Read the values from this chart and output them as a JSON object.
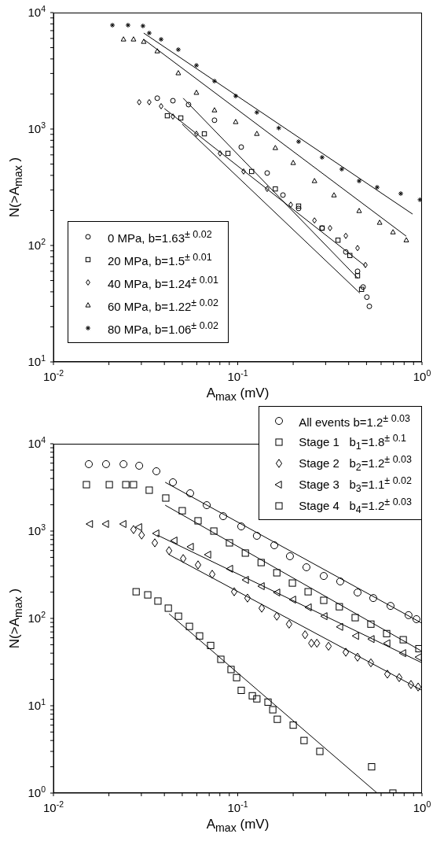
{
  "chart_data": [
    {
      "type": "scatter",
      "xlabel": "A$_{max}$ (mV)",
      "ylabel": "N(>A$_{max}$ )",
      "log": "xy",
      "legend": "bottom left",
      "xlim": [
        0.01,
        1
      ],
      "ylim": [
        10,
        10000
      ],
      "xticks": [
        {
          "value": 0.01,
          "label": "10$^{-2}$"
        },
        {
          "value": 0.02,
          "label": null
        },
        {
          "value": 0.03,
          "label": null
        },
        {
          "value": 0.04,
          "label": null
        },
        {
          "value": 0.05,
          "label": null
        },
        {
          "value": 0.06,
          "label": null
        },
        {
          "value": 0.07,
          "label": null
        },
        {
          "value": 0.08,
          "label": null
        },
        {
          "value": 0.09,
          "label": null
        },
        {
          "value": 0.1,
          "label": "10$^{-1}$"
        },
        {
          "value": 0.2,
          "label": null
        },
        {
          "value": 0.3,
          "label": null
        },
        {
          "value": 0.4,
          "label": null
        },
        {
          "value": 0.5,
          "label": null
        },
        {
          "value": 0.6,
          "label": null
        },
        {
          "value": 0.7,
          "label": null
        },
        {
          "value": 0.8,
          "label": null
        },
        {
          "value": 0.9,
          "label": null
        },
        {
          "value": 1,
          "label": "10$^{0}$"
        }
      ],
      "yticks": [
        {
          "value": 10,
          "label": "10$^{1}$"
        },
        {
          "value": 20,
          "label": null
        },
        {
          "value": 30,
          "label": null
        },
        {
          "value": 40,
          "label": null
        },
        {
          "value": 50,
          "label": null
        },
        {
          "value": 60,
          "label": null
        },
        {
          "value": 70,
          "label": null
        },
        {
          "value": 80,
          "label": null
        },
        {
          "value": 90,
          "label": null
        },
        {
          "value": 100,
          "label": "10$^{2}$"
        },
        {
          "value": 200,
          "label": null
        },
        {
          "value": 300,
          "label": null
        },
        {
          "value": 400,
          "label": null
        },
        {
          "value": 500,
          "label": null
        },
        {
          "value": 600,
          "label": null
        },
        {
          "value": 700,
          "label": null
        },
        {
          "value": 800,
          "label": null
        },
        {
          "value": 900,
          "label": null
        },
        {
          "value": 1000,
          "label": "10$^{3}$"
        },
        {
          "value": 2000,
          "label": null
        },
        {
          "value": 3000,
          "label": null
        },
        {
          "value": 4000,
          "label": null
        },
        {
          "value": 5000,
          "label": null
        },
        {
          "value": 6000,
          "label": null
        },
        {
          "value": 7000,
          "label": null
        },
        {
          "value": 8000,
          "label": null
        },
        {
          "value": 9000,
          "label": null
        },
        {
          "value": 10000,
          "label": "10$^{4}$"
        }
      ],
      "series": [
        {
          "name": "0 MPa, b=1.63$^{± 0.02}$",
          "color": "#000000",
          "marker": "circle",
          "x": [
            0.0366,
            0.0445,
            0.0541,
            0.0748,
            0.1045,
            0.1445,
            0.176,
            0.214,
            0.287,
            0.386,
            0.447,
            0.479,
            0.502,
            0.518
          ],
          "values": [
            1840,
            1750,
            1620,
            1190,
            700,
            419,
            271,
            208,
            141,
            88,
            60,
            44,
            36,
            30
          ]
        },
        {
          "name": "20 MPa, b=1.5$^{± 0.01}$",
          "color": "#000000",
          "marker": "square",
          "x": [
            0.0415,
            0.0491,
            0.0659,
            0.0885,
            0.119,
            0.16,
            0.214,
            0.287,
            0.35,
            0.406,
            0.447,
            0.47
          ],
          "values": [
            1300,
            1245,
            910,
            618,
            432,
            306,
            218,
            141,
            111,
            82,
            55,
            42
          ]
        },
        {
          "name": "40 MPa, b=1.24$^{± 0.01}$",
          "color": "#000000",
          "marker": "diamond",
          "x": [
            0.0292,
            0.0331,
            0.0384,
            0.0445,
            0.0597,
            0.0802,
            0.1076,
            0.1445,
            0.194,
            0.261,
            0.317,
            0.386,
            0.447,
            0.493
          ],
          "values": [
            1700,
            1700,
            1570,
            1280,
            910,
            618,
            432,
            306,
            224,
            164,
            141,
            121,
            95,
            68
          ]
        },
        {
          "name": "60 MPa, b=1.22$^{± 0.02}$",
          "color": "#000000",
          "marker": "triangle",
          "x": [
            0.024,
            0.0272,
            0.0309,
            0.0366,
            0.0476,
            0.0597,
            0.0748,
            0.0975,
            0.127,
            0.16,
            0.2,
            0.261,
            0.333,
            0.456,
            0.589,
            0.696,
            0.822
          ],
          "values": [
            5890,
            5890,
            5620,
            4660,
            3020,
            2050,
            1450,
            1150,
            910,
            688,
            512,
            358,
            270,
            198,
            157,
            130,
            111
          ]
        },
        {
          "name": "80 MPa, b=1.06$^{± 0.02}$",
          "color": "#000000",
          "marker": "cross",
          "x": [
            0.0209,
            0.0254,
            0.0306,
            0.0331,
            0.0384,
            0.0476,
            0.0597,
            0.0748,
            0.0975,
            0.127,
            0.167,
            0.214,
            0.287,
            0.367,
            0.456,
            0.571,
            0.767,
            0.975
          ],
          "values": [
            7800,
            7800,
            7680,
            6670,
            5890,
            4810,
            3520,
            2580,
            1920,
            1390,
            1020,
            780,
            571,
            452,
            358,
            316,
            279,
            247
          ]
        },
        {
          "type": "line",
          "color": "#000000",
          "x": [
            0.0506,
            0.45
          ],
          "values": [
            1840,
            52
          ]
        },
        {
          "type": "line",
          "color": "#000000",
          "x": [
            0.05,
            0.46
          ],
          "values": [
            1100,
            39
          ]
        },
        {
          "type": "line",
          "color": "#000000",
          "x": [
            0.04,
            0.49
          ],
          "values": [
            1500,
            67
          ]
        },
        {
          "type": "line",
          "color": "#000000",
          "x": [
            0.0309,
            0.822
          ],
          "values": [
            5890,
            120
          ]
        },
        {
          "type": "line",
          "color": "#000000",
          "x": [
            0.0309,
            0.889
          ],
          "values": [
            6670,
            186
          ]
        }
      ]
    },
    {
      "type": "scatter",
      "xlabel": "A$_{max}$ (mV)",
      "ylabel": "N(>A$_{max}$ )",
      "log": "xy",
      "legend": "top right",
      "xlim": [
        0.01,
        1
      ],
      "ylim": [
        1,
        10000
      ],
      "xticks": [
        {
          "value": 0.01,
          "label": "10$^{-2}$"
        },
        {
          "value": 0.02,
          "label": null
        },
        {
          "value": 0.03,
          "label": null
        },
        {
          "value": 0.04,
          "label": null
        },
        {
          "value": 0.05,
          "label": null
        },
        {
          "value": 0.06,
          "label": null
        },
        {
          "value": 0.07,
          "label": null
        },
        {
          "value": 0.08,
          "label": null
        },
        {
          "value": 0.09,
          "label": null
        },
        {
          "value": 0.1,
          "label": "10$^{-1}$"
        },
        {
          "value": 0.2,
          "label": null
        },
        {
          "value": 0.3,
          "label": null
        },
        {
          "value": 0.4,
          "label": null
        },
        {
          "value": 0.5,
          "label": null
        },
        {
          "value": 0.6,
          "label": null
        },
        {
          "value": 0.7,
          "label": null
        },
        {
          "value": 0.8,
          "label": null
        },
        {
          "value": 0.9,
          "label": null
        },
        {
          "value": 1,
          "label": "10$^{0}$"
        }
      ],
      "yticks": [
        {
          "value": 1,
          "label": "10$^{0}$"
        },
        {
          "value": 2,
          "label": null
        },
        {
          "value": 3,
          "label": null
        },
        {
          "value": 4,
          "label": null
        },
        {
          "value": 5,
          "label": null
        },
        {
          "value": 6,
          "label": null
        },
        {
          "value": 7,
          "label": null
        },
        {
          "value": 8,
          "label": null
        },
        {
          "value": 9,
          "label": null
        },
        {
          "value": 10,
          "label": "10$^{1}$"
        },
        {
          "value": 20,
          "label": null
        },
        {
          "value": 30,
          "label": null
        },
        {
          "value": 40,
          "label": null
        },
        {
          "value": 50,
          "label": null
        },
        {
          "value": 60,
          "label": null
        },
        {
          "value": 70,
          "label": null
        },
        {
          "value": 80,
          "label": null
        },
        {
          "value": 90,
          "label": null
        },
        {
          "value": 100,
          "label": "10$^{2}$"
        },
        {
          "value": 200,
          "label": null
        },
        {
          "value": 300,
          "label": null
        },
        {
          "value": 400,
          "label": null
        },
        {
          "value": 500,
          "label": null
        },
        {
          "value": 600,
          "label": null
        },
        {
          "value": 700,
          "label": null
        },
        {
          "value": 800,
          "label": null
        },
        {
          "value": 900,
          "label": null
        },
        {
          "value": 1000,
          "label": "10$^{3}$"
        },
        {
          "value": 2000,
          "label": null
        },
        {
          "value": 3000,
          "label": null
        },
        {
          "value": 4000,
          "label": null
        },
        {
          "value": 5000,
          "label": null
        },
        {
          "value": 6000,
          "label": null
        },
        {
          "value": 7000,
          "label": null
        },
        {
          "value": 8000,
          "label": null
        },
        {
          "value": 9000,
          "label": null
        },
        {
          "value": 10000,
          "label": "10$^{4}$"
        }
      ],
      "series": [
        {
          "name": "All events b=1.2$^{± 0.03}$",
          "color": "#000000",
          "marker": "circle",
          "x": [
            0.01556,
            0.0193,
            0.024,
            0.0292,
            0.0362,
            0.0445,
            0.0552,
            0.0679,
            0.0834,
            0.1045,
            0.127,
            0.158,
            0.192,
            0.236,
            0.293,
            0.36,
            0.447,
            0.544,
            0.675,
            0.845,
            0.933
          ],
          "values": [
            5840,
            5840,
            5840,
            5600,
            4840,
            3620,
            2710,
            1980,
            1480,
            1130,
            883,
            688,
            515,
            385,
            306,
            265,
            198,
            171,
            139,
            109,
            98
          ]
        },
        {
          "name": "Stage 1   b$_{1}$=1.8$^{± 0.1}$",
          "color": "#000000",
          "marker": "square",
          "x": [
            0.0281,
            0.0325,
            0.0369,
            0.042,
            0.0477,
            0.0547,
            0.0621,
            0.0713,
            0.081,
            0.092,
            0.0986,
            0.1045,
            0.12,
            0.127,
            0.146,
            0.155,
            0.164,
            0.2,
            0.229,
            0.279,
            0.533,
            0.695
          ],
          "values": [
            202,
            186,
            158,
            131,
            106,
            81,
            63,
            49,
            34,
            26,
            21,
            15,
            13,
            12,
            11,
            9,
            7,
            6,
            4,
            3,
            2,
            1
          ]
        },
        {
          "name": "Stage 2   b$_{2}$=1.2$^{± 0.03}$",
          "color": "#000000",
          "marker": "diamond",
          "x": [
            0.0272,
            0.0301,
            0.0355,
            0.0424,
            0.0506,
            0.0609,
            0.0727,
            0.0957,
            0.113,
            0.135,
            0.163,
            0.19,
            0.232,
            0.251,
            0.269,
            0.311,
            0.386,
            0.447,
            0.528,
            0.649,
            0.752,
            0.871,
            0.953
          ],
          "values": [
            1040,
            900,
            733,
            596,
            484,
            410,
            320,
            202,
            171,
            131,
            106,
            86,
            65,
            52,
            52,
            48,
            41,
            36,
            31,
            23,
            21,
            17.5,
            16.4
          ]
        },
        {
          "name": "Stage 3   b$_{3}$=1.1$^{± 0.02}$",
          "color": "#000000",
          "marker": "triangle-left",
          "x": [
            0.0158,
            0.0193,
            0.024,
            0.0292,
            0.0362,
            0.0454,
            0.0557,
            0.0692,
            0.091,
            0.1109,
            0.135,
            0.164,
            0.2,
            0.243,
            0.296,
            0.36,
            0.439,
            0.533,
            0.649,
            0.791,
            0.962
          ],
          "values": [
            1205,
            1205,
            1205,
            1110,
            940,
            780,
            661,
            537,
            370,
            276,
            234,
            198,
            164,
            134,
            106,
            80,
            63,
            58,
            52,
            40,
            36
          ]
        },
        {
          "name": "Stage 4   b$_{4}$=1.2$^{± 0.03}$",
          "color": "#000000",
          "marker": "square",
          "x": [
            0.0151,
            0.0201,
            0.0247,
            0.0272,
            0.0331,
            0.0407,
            0.05,
            0.0609,
            0.0742,
            0.0902,
            0.11,
            0.134,
            0.163,
            0.198,
            0.241,
            0.293,
            0.356,
            0.434,
            0.528,
            0.643,
            0.791,
            0.962
          ],
          "values": [
            3400,
            3400,
            3400,
            3400,
            2940,
            2390,
            1710,
            1310,
            1000,
            733,
            560,
            436,
            333,
            254,
            202,
            161,
            136,
            102,
            86,
            67,
            57,
            45
          ]
        },
        {
          "type": "line",
          "color": "#000000",
          "x": [
            0.0404,
            1
          ],
          "values": [
            3620,
            88
          ]
        },
        {
          "type": "line",
          "color": "#000000",
          "x": [
            0.0424,
            0.571
          ],
          "values": [
            113,
            1
          ]
        },
        {
          "type": "line",
          "color": "#000000",
          "x": [
            0.0424,
            1
          ],
          "values": [
            537,
            15
          ]
        },
        {
          "type": "line",
          "color": "#000000",
          "x": [
            0.0366,
            1
          ],
          "values": [
            900,
            31
          ]
        },
        {
          "type": "line",
          "color": "#000000",
          "x": [
            0.0404,
            1
          ],
          "values": [
            1980,
            42
          ]
        }
      ]
    }
  ]
}
